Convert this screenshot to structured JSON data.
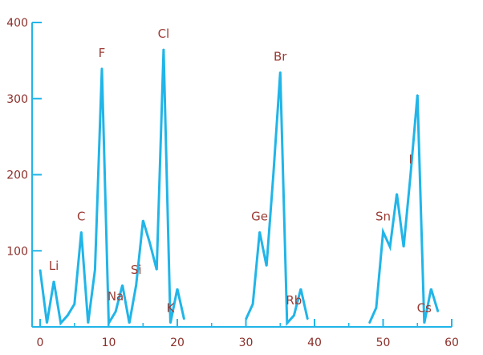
{
  "chart_data": {
    "type": "line",
    "title": "",
    "xlabel": "",
    "ylabel": "",
    "xlim": [
      0,
      60
    ],
    "ylim": [
      0,
      400
    ],
    "x_ticks": [
      0,
      10,
      20,
      30,
      40,
      50,
      60
    ],
    "y_ticks": [
      100,
      200,
      300,
      400
    ],
    "grid": false,
    "colors": {
      "line": "#21b5e8",
      "axis": "#21b5e8",
      "text": "#9b3b33"
    },
    "series": [
      {
        "segments": [
          [
            [
              0,
              75
            ],
            [
              1,
              5
            ],
            [
              2,
              60
            ],
            [
              3,
              5
            ],
            [
              4,
              15
            ],
            [
              5,
              30
            ],
            [
              6,
              125
            ],
            [
              7,
              5
            ],
            [
              8,
              75
            ],
            [
              9,
              340
            ],
            [
              10,
              5
            ],
            [
              11,
              20
            ],
            [
              12,
              55
            ],
            [
              13,
              5
            ],
            [
              14,
              55
            ],
            [
              15,
              140
            ],
            [
              16,
              110
            ],
            [
              17,
              75
            ],
            [
              18,
              365
            ],
            [
              19,
              5
            ],
            [
              20,
              50
            ],
            [
              21,
              10
            ]
          ],
          [
            [
              30,
              10
            ],
            [
              31,
              30
            ],
            [
              32,
              125
            ],
            [
              33,
              80
            ],
            [
              34,
              200
            ],
            [
              35,
              335
            ],
            [
              36,
              5
            ],
            [
              37,
              15
            ],
            [
              38,
              50
            ],
            [
              39,
              10
            ]
          ],
          [
            [
              48,
              5
            ],
            [
              49,
              25
            ],
            [
              50,
              125
            ],
            [
              51,
              105
            ],
            [
              52,
              175
            ],
            [
              53,
              105
            ],
            [
              54,
              200
            ],
            [
              55,
              305
            ],
            [
              56,
              5
            ],
            [
              57,
              50
            ],
            [
              58,
              20
            ]
          ]
        ]
      }
    ],
    "annotations": [
      {
        "text": "Li",
        "x": 2
      },
      {
        "text": "C",
        "x": 6
      },
      {
        "text": "F",
        "x": 9
      },
      {
        "text": "Na",
        "x": 11
      },
      {
        "text": "Si",
        "x": 14
      },
      {
        "text": "Cl",
        "x": 18
      },
      {
        "text": "K",
        "x": 19
      },
      {
        "text": "Ge",
        "x": 32
      },
      {
        "text": "Br",
        "x": 35
      },
      {
        "text": "Rb",
        "x": 37
      },
      {
        "text": "Sn",
        "x": 50
      },
      {
        "text": "I",
        "x": 54
      },
      {
        "text": "Cs",
        "x": 56
      }
    ]
  }
}
